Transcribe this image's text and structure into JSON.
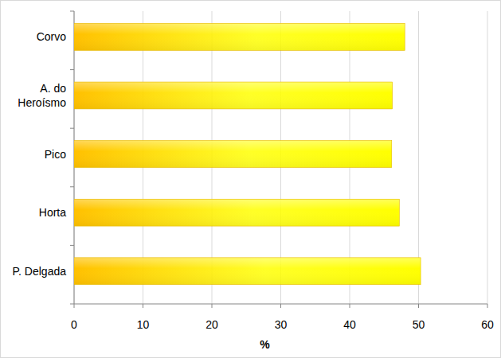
{
  "chart_data": {
    "type": "bar",
    "orientation": "horizontal",
    "categories": [
      "P. Delgada",
      "Horta",
      "Pico",
      "A. do Heroísmo",
      "Corvo"
    ],
    "values": [
      50.3,
      47.2,
      46.1,
      46.2,
      48.0
    ],
    "color": "#ffff00",
    "xlabel": "%",
    "xlim": [
      0,
      60
    ],
    "xticks": [
      0,
      10,
      20,
      30,
      40,
      50,
      60
    ],
    "grid": true
  }
}
